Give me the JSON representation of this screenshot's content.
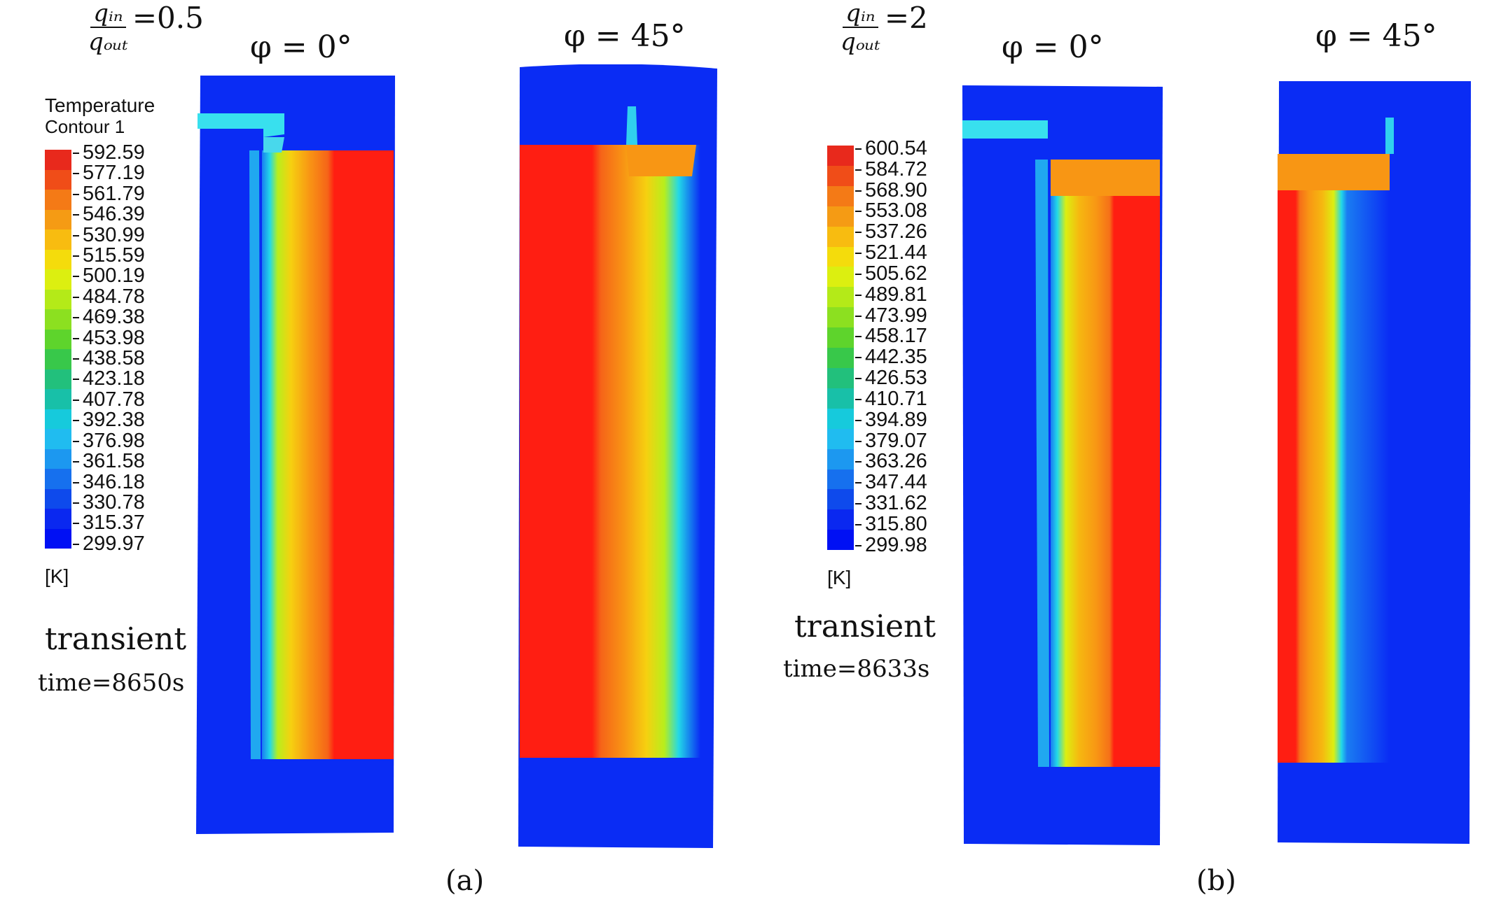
{
  "panels": [
    {
      "label": "(a)",
      "ratio": {
        "numerator": "qᵢₙ",
        "denominator": "qₒᵤₜ",
        "value": "=0.5"
      },
      "angles": [
        "φ = 0°",
        "φ = 45°"
      ],
      "legend": {
        "title": "Temperature",
        "subtitle": "Contour 1",
        "unit": "[K]",
        "ticks": [
          "592.59",
          "577.19",
          "561.79",
          "546.39",
          "530.99",
          "515.59",
          "500.19",
          "484.78",
          "469.38",
          "453.98",
          "438.58",
          "423.18",
          "407.78",
          "392.38",
          "376.98",
          "361.58",
          "346.18",
          "330.78",
          "315.37",
          "299.97"
        ]
      },
      "mode": "transient",
      "time": "time=8650s"
    },
    {
      "label": "(b)",
      "ratio": {
        "numerator": "qᵢₙ",
        "denominator": "qₒᵤₜ",
        "value": "=2"
      },
      "angles": [
        "φ = 0°",
        "φ = 45°"
      ],
      "legend": {
        "title": "",
        "subtitle": "",
        "unit": "[K]",
        "ticks": [
          "600.54",
          "584.72",
          "568.90",
          "553.08",
          "537.26",
          "521.44",
          "505.62",
          "489.81",
          "473.99",
          "458.17",
          "442.35",
          "426.53",
          "410.71",
          "394.89",
          "379.07",
          "363.26",
          "347.44",
          "331.62",
          "315.80",
          "299.98"
        ]
      },
      "mode": "transient",
      "time": "time=8633s"
    }
  ],
  "colormap": [
    "#e8291c",
    "#f04d18",
    "#f47a16",
    "#f59b14",
    "#f8bc10",
    "#f4dc0c",
    "#dcef10",
    "#b4ea18",
    "#8ce020",
    "#5ed42c",
    "#38c84a",
    "#22c07c",
    "#18c0a8",
    "#16cadc",
    "#20bcf0",
    "#1c98f0",
    "#1670ee",
    "#0e4aec",
    "#0a28f0",
    "#0010f4"
  ],
  "colors": {
    "hot": "#ff1e12",
    "cold": "#0a2cf4",
    "orange": "#ff8a10"
  }
}
